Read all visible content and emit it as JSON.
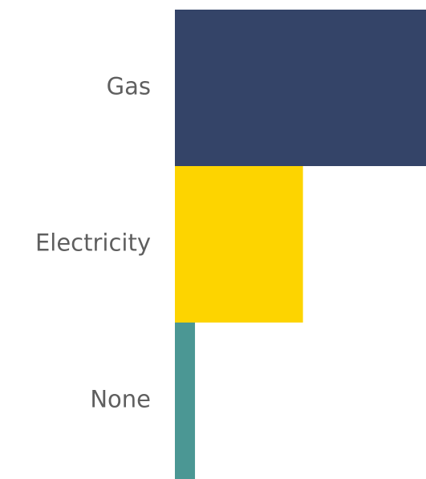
{
  "chart_data": {
    "type": "bar",
    "orientation": "horizontal",
    "categories": [
      "Gas",
      "Electricity",
      "None"
    ],
    "values": [
      100,
      51,
      8
    ],
    "colors": [
      "#344468",
      "#fdd400",
      "#4b9794"
    ],
    "title": "",
    "xlabel": "",
    "ylabel": "",
    "xlim": [
      0,
      100
    ],
    "grid": false,
    "legend": "none"
  }
}
